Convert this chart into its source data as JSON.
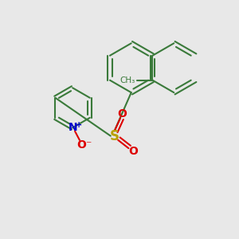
{
  "bg_color": "#e8e8e8",
  "bond_color": "#3a7a3a",
  "bond_width": 1.5,
  "S_color": "#b8a000",
  "O_color": "#dd0000",
  "N_color": "#0000cc",
  "figsize": [
    3.0,
    3.0
  ],
  "dpi": 100,
  "xlim": [
    0,
    10
  ],
  "ylim": [
    0,
    10
  ]
}
